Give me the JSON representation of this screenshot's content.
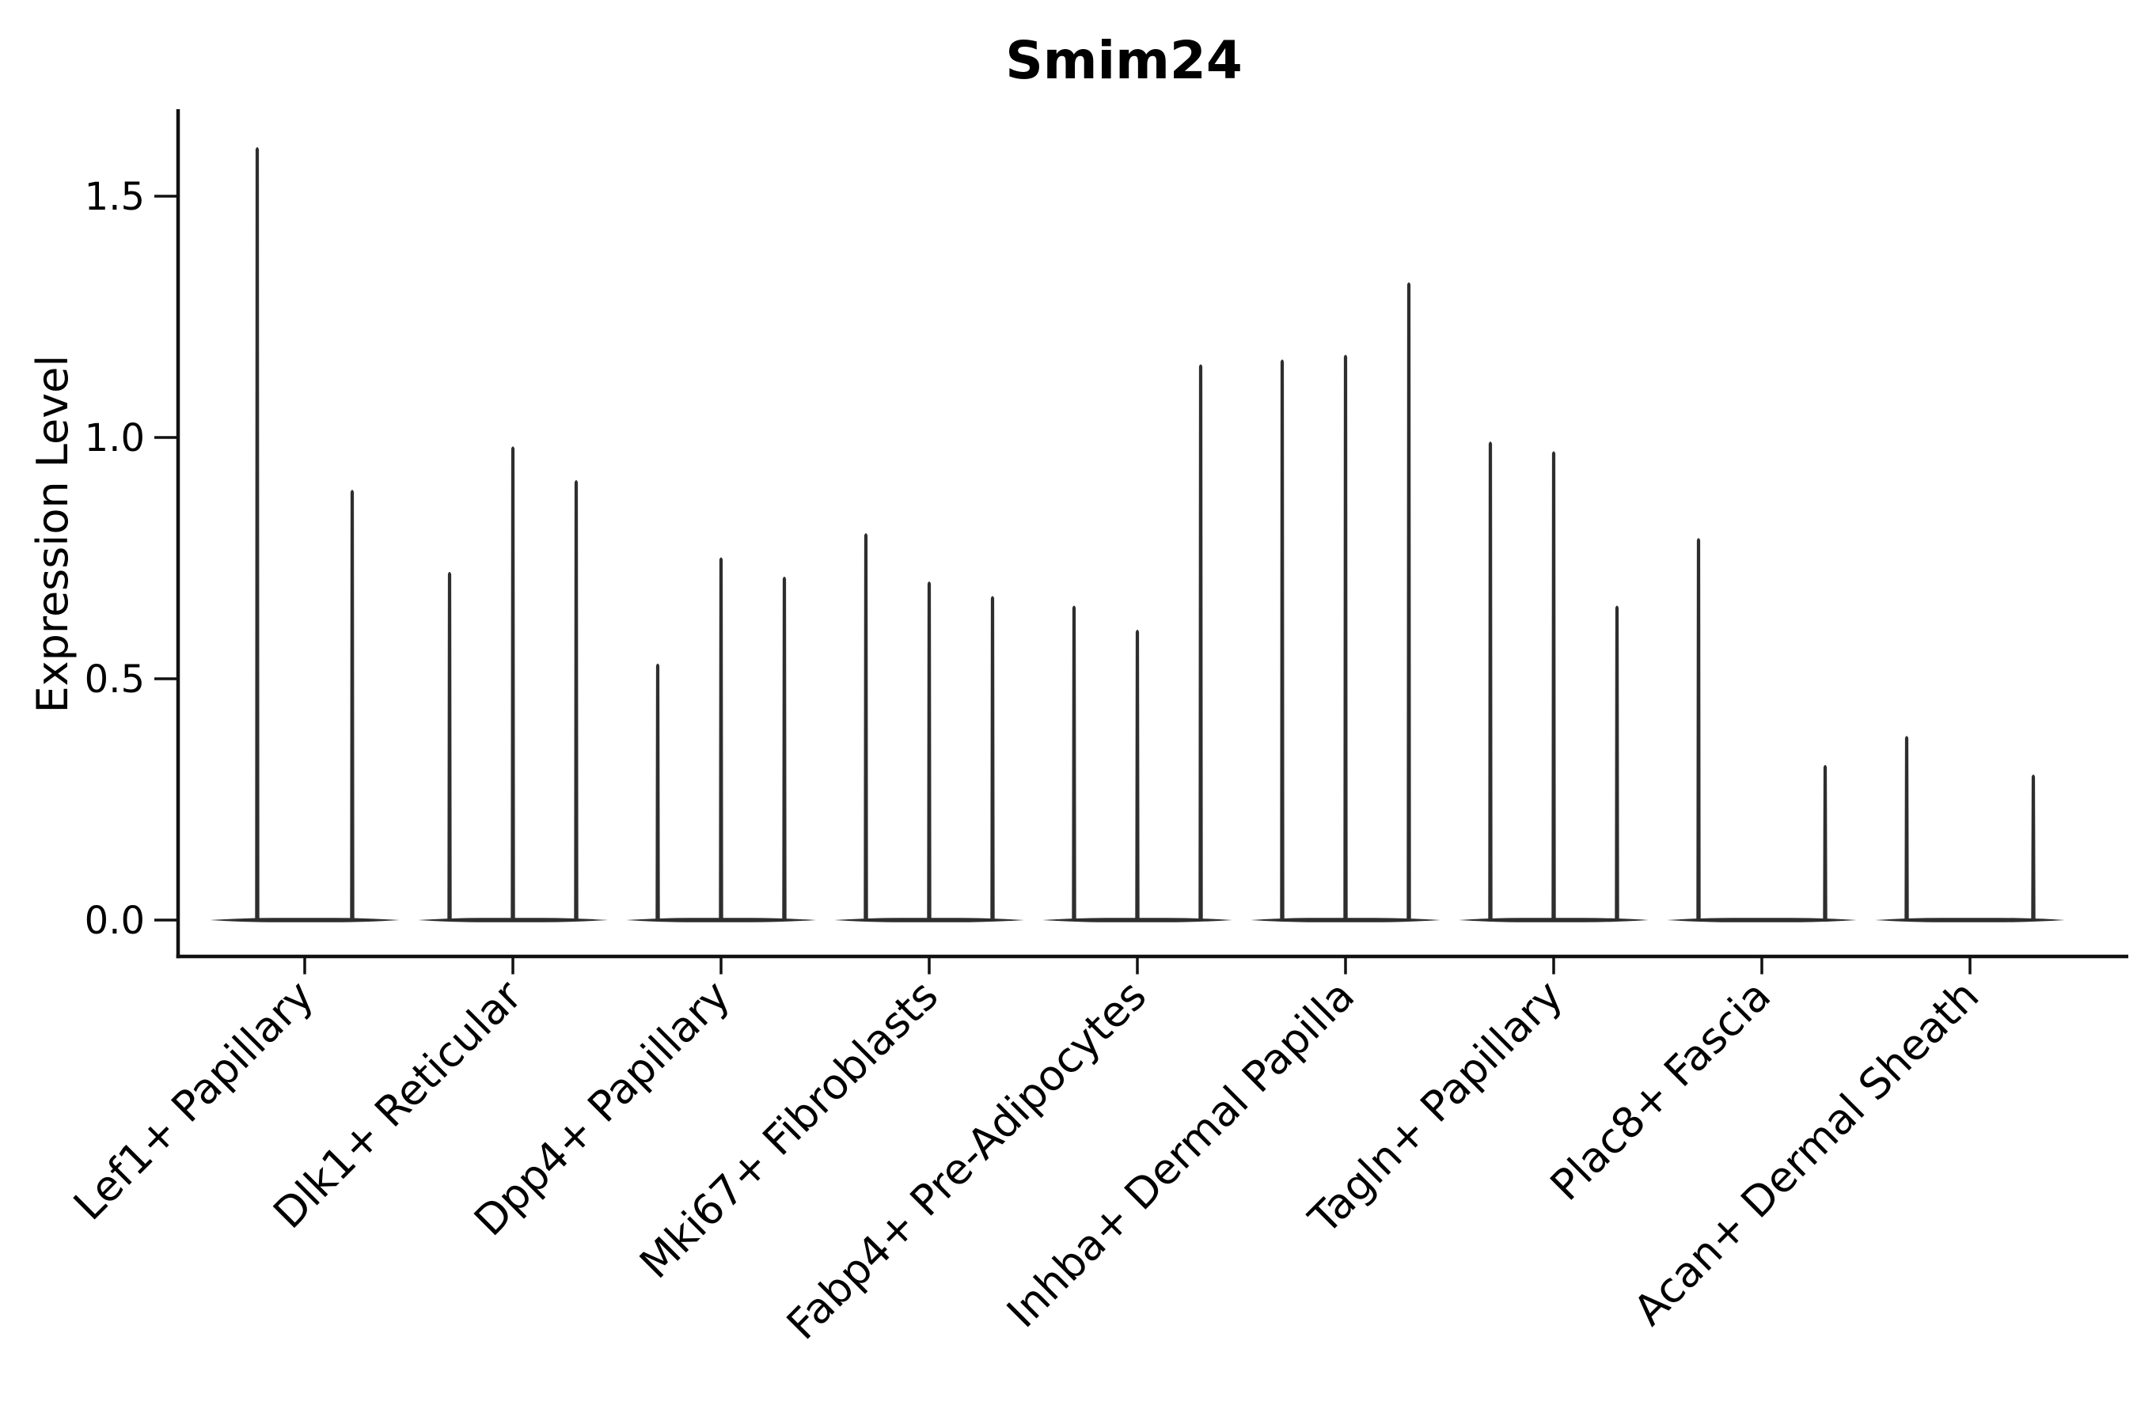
{
  "chart_data": {
    "type": "violin",
    "title": "Smim24",
    "ylabel": "Expression Level",
    "xlabel": "",
    "grid": false,
    "legend": "none",
    "ytick_labels": [
      "0.0",
      "0.5",
      "1.0",
      "1.5"
    ],
    "ytick_values": [
      0.0,
      0.5,
      1.0,
      1.5
    ],
    "ylim": [
      -0.08,
      1.68
    ],
    "categories": [
      "Lef1+ Papillary",
      "Dlk1+ Reticular",
      "Dpp4+ Papillary",
      "Mki67+ Fibroblasts",
      "Fabp4+ Pre-Adipocytes",
      "Inhba+ Dermal Papilla",
      "Tagln+ Papillary",
      "Plac8+ Fascia",
      "Acan+ Dermal Sheath"
    ],
    "violins": [
      {
        "category": "Lef1+ Papillary",
        "slots": 2,
        "peaks": [
          1.6,
          0.89
        ]
      },
      {
        "category": "Dlk1+ Reticular",
        "slots": 3,
        "peaks": [
          0.72,
          0.98,
          0.91
        ]
      },
      {
        "category": "Dpp4+ Papillary",
        "slots": 3,
        "peaks": [
          0.53,
          0.75,
          0.71
        ]
      },
      {
        "category": "Mki67+ Fibroblasts",
        "slots": 3,
        "peaks": [
          0.8,
          0.7,
          0.67
        ]
      },
      {
        "category": "Fabp4+ Pre-Adipocytes",
        "slots": 3,
        "peaks": [
          0.65,
          0.6,
          1.15
        ]
      },
      {
        "category": "Inhba+ Dermal Papilla",
        "slots": 3,
        "peaks": [
          1.16,
          1.17,
          1.32
        ]
      },
      {
        "category": "Tagln+ Papillary",
        "slots": 3,
        "peaks": [
          0.99,
          0.97,
          0.65
        ]
      },
      {
        "category": "Plac8+ Fascia",
        "slots": 3,
        "peaks": [
          0.79,
          null,
          0.32
        ]
      },
      {
        "category": "Acan+ Dermal Sheath",
        "slots": 3,
        "peaks": [
          0.38,
          null,
          0.3
        ]
      }
    ],
    "colors": {
      "ink": "#000000",
      "violin": "#2e2e2e",
      "spine": "#111111"
    }
  }
}
